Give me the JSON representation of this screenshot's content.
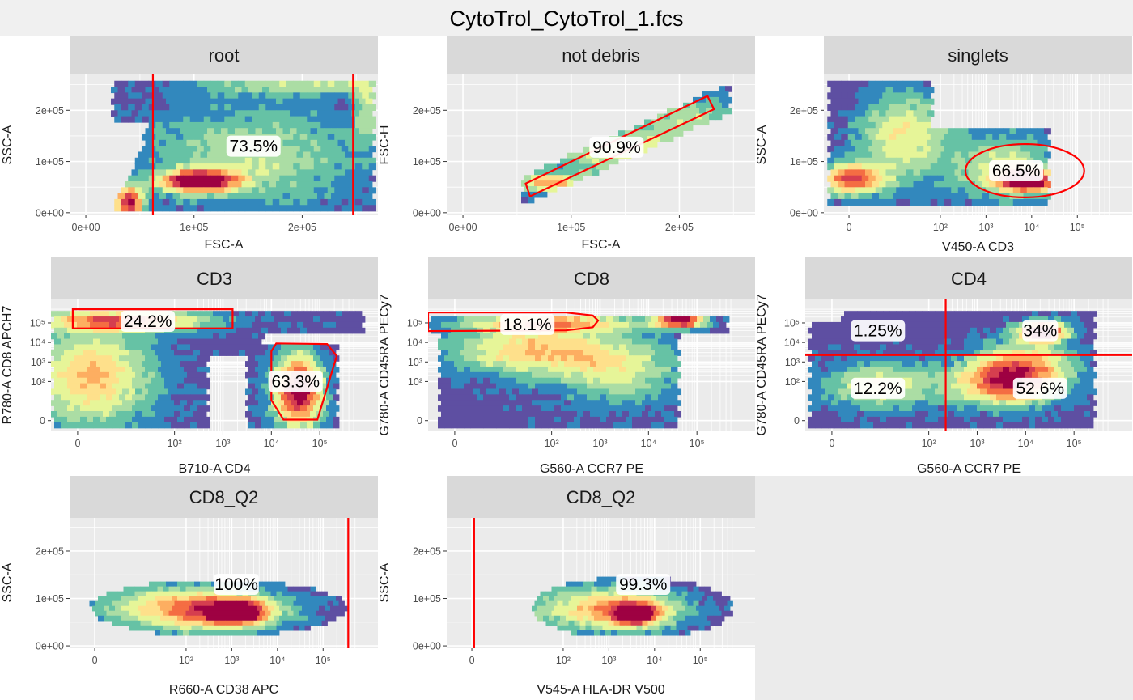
{
  "title": "CytoTrol_CytoTrol_1.fcs",
  "colors": {
    "background": "#ffffff",
    "title_band": "#f0f0f0",
    "strip": "#d9d9d9",
    "panel": "#ebebeb",
    "grid": "#ffffff",
    "gate": "#ff0000",
    "palette": [
      "#5e4fa2",
      "#3288bd",
      "#66c2a5",
      "#abdda4",
      "#e6f598",
      "#fee08b",
      "#fdae61",
      "#f46d43",
      "#d53e4f",
      "#9e0142"
    ]
  },
  "chart_data": [
    {
      "type": "heatmap",
      "strip": "root",
      "xlabel": "FSC-A",
      "ylabel": "SSC-A",
      "x_scale": "linear",
      "y_scale": "linear",
      "xlim": [
        -15000,
        270000
      ],
      "ylim": [
        -5000,
        270000
      ],
      "xticks": [
        0,
        100000,
        200000
      ],
      "xtick_labels": [
        "0e+00",
        "1e+05",
        "2e+05"
      ],
      "yticks": [
        0,
        100000,
        200000
      ],
      "ytick_labels": [
        "0e+00",
        "1e+05",
        "2e+05"
      ],
      "gates": [
        {
          "kind": "vline",
          "x": 62000
        },
        {
          "kind": "vline",
          "x": 247000
        }
      ],
      "labels": [
        {
          "text": "73.5%",
          "x": 155000,
          "y": 130000
        }
      ]
    },
    {
      "type": "heatmap",
      "strip": "not debris",
      "xlabel": "FSC-A",
      "ylabel": "FSC-H",
      "x_scale": "linear",
      "y_scale": "linear",
      "xlim": [
        -15000,
        270000
      ],
      "ylim": [
        -5000,
        270000
      ],
      "xticks": [
        0,
        100000,
        200000
      ],
      "xtick_labels": [
        "0e+00",
        "1e+05",
        "2e+05"
      ],
      "yticks": [
        0,
        100000,
        200000
      ],
      "ytick_labels": [
        "0e+00",
        "1e+05",
        "2e+05"
      ],
      "gates": [
        {
          "kind": "polygon",
          "points": [
            [
              58000,
              57000
            ],
            [
              226000,
              228000
            ],
            [
              232000,
              202000
            ],
            [
              62000,
              32000
            ]
          ]
        }
      ],
      "labels": [
        {
          "text": "90.9%",
          "x": 142000,
          "y": 128000
        }
      ]
    },
    {
      "type": "heatmap",
      "strip": "singlets",
      "xlabel": "V450-A CD3",
      "ylabel": "SSC-A",
      "x_scale": "logicle",
      "y_scale": "linear",
      "xlim": [
        -0.55,
        6.2
      ],
      "ylim": [
        -5000,
        270000
      ],
      "xticks": [
        0,
        2,
        3,
        4,
        5
      ],
      "xtick_labels": [
        "0",
        "10²",
        "10³",
        "10⁴",
        "10⁵"
      ],
      "yticks": [
        0,
        100000,
        200000
      ],
      "ytick_labels": [
        "0e+00",
        "1e+05",
        "2e+05"
      ],
      "gates": [
        {
          "kind": "ellipse",
          "cx": 3.85,
          "cy": 82000,
          "rx": 1.3,
          "ry": 52000
        }
      ],
      "labels": [
        {
          "text": "66.5%",
          "x": 3.66,
          "y": 82000
        }
      ]
    },
    {
      "type": "heatmap",
      "strip": "CD3",
      "xlabel": "B710-A CD4",
      "ylabel": "R780-A CD8 APCH7",
      "x_scale": "logicle",
      "y_scale": "logicle",
      "xlim": [
        -0.55,
        6.2
      ],
      "ylim": [
        -0.55,
        6.2
      ],
      "xticks": [
        0,
        2,
        3,
        4,
        5
      ],
      "xtick_labels": [
        "0",
        "10²",
        "10³",
        "10⁴",
        "10⁵"
      ],
      "yticks": [
        0,
        2,
        3,
        4,
        5
      ],
      "ytick_labels": [
        "0",
        "10²",
        "10³",
        "10⁴",
        "10⁵"
      ],
      "gates": [
        {
          "kind": "polygon",
          "points": [
            [
              -0.1,
              5.7
            ],
            [
              3.2,
              5.7
            ],
            [
              3.2,
              4.72
            ],
            [
              -0.1,
              4.72
            ]
          ]
        },
        {
          "kind": "polygon",
          "points": [
            [
              4.0,
              3.55
            ],
            [
              4.1,
              3.95
            ],
            [
              5.15,
              3.92
            ],
            [
              5.35,
              3.3
            ],
            [
              4.95,
              0.05
            ],
            [
              4.25,
              0.05
            ],
            [
              4.0,
              1.05
            ]
          ]
        }
      ],
      "labels": [
        {
          "text": "24.2%",
          "x": 1.45,
          "y": 5.08
        },
        {
          "text": "63.3%",
          "x": 4.5,
          "y": 2.0
        }
      ]
    },
    {
      "type": "heatmap",
      "strip": "CD8",
      "xlabel": "G560-A CCR7 PE",
      "ylabel": "G780-A CD45RA PECy7",
      "x_scale": "logicle",
      "y_scale": "logicle",
      "xlim": [
        -0.55,
        6.2
      ],
      "ylim": [
        -0.55,
        6.2
      ],
      "xticks": [
        0,
        2,
        3,
        4,
        5
      ],
      "xtick_labels": [
        "0",
        "10²",
        "10³",
        "10⁴",
        "10⁵"
      ],
      "yticks": [
        0,
        2,
        3,
        4,
        5
      ],
      "ytick_labels": [
        "0",
        "10²",
        "10³",
        "10⁴",
        "10⁵"
      ],
      "gates": [
        {
          "kind": "polygon",
          "points": [
            [
              -0.55,
              5.53
            ],
            [
              2.3,
              5.53
            ],
            [
              2.85,
              5.38
            ],
            [
              2.96,
              5.12
            ],
            [
              2.85,
              4.78
            ],
            [
              2.3,
              4.62
            ],
            [
              -0.55,
              4.58
            ]
          ]
        }
      ],
      "labels": [
        {
          "text": "18.1%",
          "x": 1.5,
          "y": 4.92
        }
      ]
    },
    {
      "type": "heatmap",
      "strip": "CD4",
      "xlabel": "G560-A CCR7 PE",
      "ylabel": "G780-A CD45RA PECy7",
      "x_scale": "logicle",
      "y_scale": "logicle",
      "xlim": [
        -0.55,
        6.2
      ],
      "ylim": [
        -0.55,
        6.2
      ],
      "xticks": [
        0,
        2,
        3,
        4,
        5
      ],
      "xtick_labels": [
        "0",
        "10²",
        "10³",
        "10⁴",
        "10⁵"
      ],
      "yticks": [
        0,
        2,
        3,
        4,
        5
      ],
      "ytick_labels": [
        "0",
        "10²",
        "10³",
        "10⁴",
        "10⁵"
      ],
      "gates": [
        {
          "kind": "vline",
          "x": 2.35
        },
        {
          "kind": "hline",
          "y": 3.35
        }
      ],
      "labels": [
        {
          "text": "1.25%",
          "x": 0.95,
          "y": 4.6
        },
        {
          "text": "34%",
          "x": 4.3,
          "y": 4.6
        },
        {
          "text": "12.2%",
          "x": 0.95,
          "y": 1.65
        },
        {
          "text": "52.6%",
          "x": 4.3,
          "y": 1.65
        }
      ]
    },
    {
      "type": "heatmap",
      "strip": "CD8_Q2",
      "xlabel": "R660-A CD38 APC",
      "ylabel": "SSC-A",
      "x_scale": "logicle",
      "y_scale": "linear",
      "xlim": [
        -0.55,
        6.2
      ],
      "ylim": [
        -5000,
        270000
      ],
      "xticks": [
        0,
        2,
        3,
        4,
        5
      ],
      "xtick_labels": [
        "0",
        "10²",
        "10³",
        "10⁴",
        "10⁵"
      ],
      "yticks": [
        0,
        100000,
        200000
      ],
      "ytick_labels": [
        "0e+00",
        "1e+05",
        "2e+05"
      ],
      "gates": [
        {
          "kind": "vline",
          "x": 5.55
        }
      ],
      "labels": [
        {
          "text": "100%",
          "x": 3.1,
          "y": 130000
        }
      ]
    },
    {
      "type": "heatmap",
      "strip": "CD8_Q2",
      "xlabel": "V545-A HLA-DR V500",
      "ylabel": "SSC-A",
      "x_scale": "logicle",
      "y_scale": "linear",
      "xlim": [
        -0.55,
        6.2
      ],
      "ylim": [
        -5000,
        270000
      ],
      "xticks": [
        0,
        2,
        3,
        4,
        5
      ],
      "xtick_labels": [
        "0",
        "10²",
        "10³",
        "10⁴",
        "10⁵"
      ],
      "yticks": [
        0,
        100000,
        200000
      ],
      "ytick_labels": [
        "0e+00",
        "1e+05",
        "2e+05"
      ],
      "gates": [
        {
          "kind": "vline",
          "x": 0.05
        }
      ],
      "labels": [
        {
          "text": "99.3%",
          "x": 3.75,
          "y": 130000
        }
      ]
    }
  ]
}
